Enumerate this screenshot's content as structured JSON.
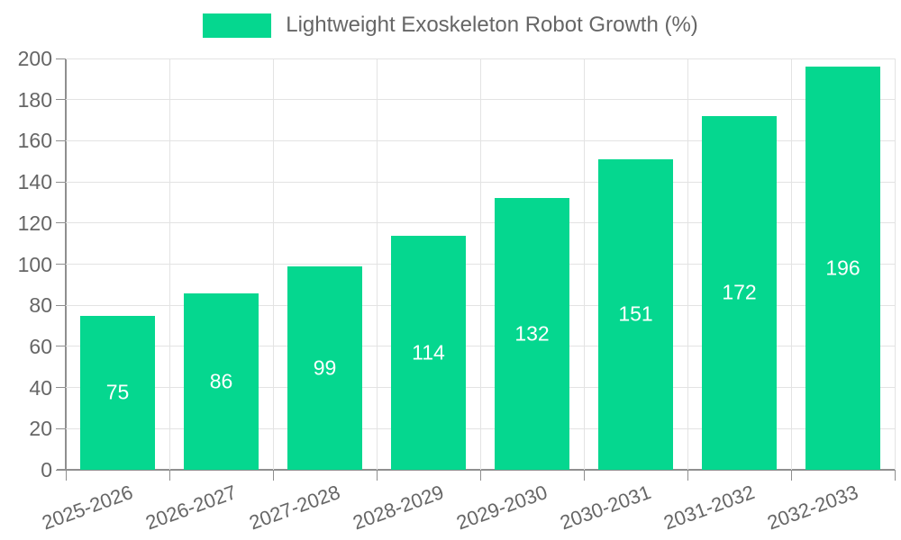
{
  "legend": {
    "label": "Lightweight Exoskeleton Robot Growth (%)"
  },
  "chart_data": {
    "type": "bar",
    "title": "Lightweight Exoskeleton Robot Growth (%)",
    "categories": [
      "2025-2026",
      "2026-2027",
      "2027-2028",
      "2028-2029",
      "2029-2030",
      "2030-2031",
      "2031-2032",
      "2032-2033"
    ],
    "values": [
      75,
      86,
      99,
      114,
      132,
      151,
      172,
      196
    ],
    "xlabel": "",
    "ylabel": "",
    "ylim": [
      0,
      200
    ],
    "ytick_step": 20,
    "grid": true,
    "legend_position": "top",
    "colors": {
      "bar": "#05D78F",
      "bar_label": "#ffffff",
      "axis": "#8f8f8f",
      "gridline": "#e3e3e3",
      "text": "#666666",
      "background": "#ffffff"
    }
  }
}
